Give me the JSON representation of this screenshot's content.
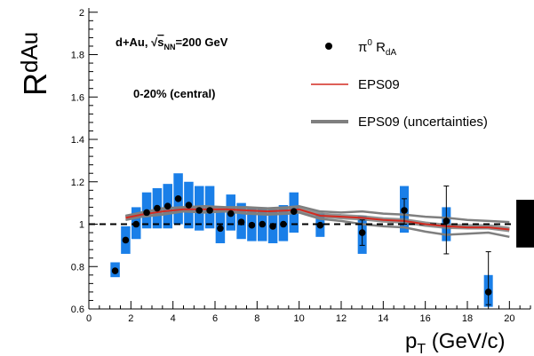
{
  "chart_data": {
    "type": "scatter",
    "xlim": [
      0,
      21
    ],
    "ylim": [
      0.6,
      2.02
    ],
    "x_ticks": [
      0,
      2,
      4,
      6,
      8,
      10,
      12,
      14,
      16,
      18,
      20
    ],
    "y_ticks": [
      0.6,
      0.8,
      1.0,
      1.2,
      1.4,
      1.6,
      1.8,
      2.0
    ],
    "x_tick_labels": [
      "0",
      "2",
      "4",
      "6",
      "8",
      "10",
      "12",
      "14",
      "16",
      "18",
      "20"
    ],
    "y_tick_labels": [
      "0.6",
      "0.8",
      "1",
      "1.2",
      "1.4",
      "1.6",
      "1.8",
      "2"
    ],
    "ylabel": {
      "main": "R",
      "sub": "dAu"
    },
    "xlabel": {
      "main": "p",
      "sub": "T",
      "rest": " (GeV/c)"
    },
    "reference_line": 1.0,
    "annotations": {
      "system": {
        "prefix": "d+Au, ",
        "sqrt": "s",
        "sqrt_sub": "NN",
        "suffix": "=200 GeV"
      },
      "centrality": "0-20% (central)"
    },
    "legend": {
      "placement": "top-right",
      "data": {
        "main": "π",
        "sup": "0",
        "mid": " R",
        "sub": "dA"
      },
      "eps09": "EPS09",
      "eps09_unc": "EPS09 (uncertainties)"
    },
    "series": [
      {
        "name": "π0 RdA",
        "marker": "circle",
        "color": "#000000",
        "box_color": "#1a7fe8",
        "points": [
          {
            "x": 1.25,
            "y": 0.78,
            "sys_lo": 0.75,
            "sys_hi": 0.82
          },
          {
            "x": 1.75,
            "y": 0.925,
            "sys_lo": 0.86,
            "sys_hi": 0.99
          },
          {
            "x": 2.25,
            "y": 1.0,
            "sys_lo": 0.93,
            "sys_hi": 1.08
          },
          {
            "x": 2.75,
            "y": 1.055,
            "sys_lo": 0.98,
            "sys_hi": 1.15
          },
          {
            "x": 3.25,
            "y": 1.075,
            "sys_lo": 0.98,
            "sys_hi": 1.17
          },
          {
            "x": 3.75,
            "y": 1.085,
            "sys_lo": 0.98,
            "sys_hi": 1.19
          },
          {
            "x": 4.25,
            "y": 1.12,
            "sys_lo": 1.0,
            "sys_hi": 1.24
          },
          {
            "x": 4.75,
            "y": 1.09,
            "sys_lo": 0.98,
            "sys_hi": 1.2
          },
          {
            "x": 5.25,
            "y": 1.065,
            "sys_lo": 0.97,
            "sys_hi": 1.18
          },
          {
            "x": 5.75,
            "y": 1.065,
            "sys_lo": 0.98,
            "sys_hi": 1.18
          },
          {
            "x": 6.25,
            "y": 0.98,
            "sys_lo": 0.91,
            "sys_hi": 1.07
          },
          {
            "x": 6.75,
            "y": 1.05,
            "sys_lo": 0.97,
            "sys_hi": 1.14
          },
          {
            "x": 7.25,
            "y": 1.01,
            "sys_lo": 0.93,
            "sys_hi": 1.1
          },
          {
            "x": 7.75,
            "y": 0.995,
            "sys_lo": 0.92,
            "sys_hi": 1.08
          },
          {
            "x": 8.25,
            "y": 1.0,
            "sys_lo": 0.92,
            "sys_hi": 1.08
          },
          {
            "x": 8.75,
            "y": 0.99,
            "sys_lo": 0.91,
            "sys_hi": 1.07
          },
          {
            "x": 9.25,
            "y": 1.0,
            "sys_lo": 0.92,
            "sys_hi": 1.09
          },
          {
            "x": 9.75,
            "y": 1.06,
            "sys_lo": 0.96,
            "sys_hi": 1.15
          },
          {
            "x": 11.0,
            "y": 0.995,
            "sys_lo": 0.94,
            "sys_hi": 1.05
          },
          {
            "x": 13.0,
            "y": 0.96,
            "sys_lo": 0.86,
            "sys_hi": 1.04
          },
          {
            "x": 15.0,
            "y": 1.065,
            "sys_lo": 0.96,
            "sys_hi": 1.18
          },
          {
            "x": 17.0,
            "y": 1.015,
            "sys_lo": 0.92,
            "sys_hi": 1.08
          },
          {
            "x": 19.0,
            "y": 0.68,
            "sys_lo": 0.61,
            "sys_hi": 0.76
          }
        ],
        "stat_errors": [
          {
            "x": 13.0,
            "lo": 0.9,
            "hi": 1.02
          },
          {
            "x": 15.0,
            "lo": 1.0,
            "hi": 1.12
          },
          {
            "x": 17.0,
            "lo": 0.86,
            "hi": 1.18
          },
          {
            "x": 19.0,
            "lo": 0.62,
            "hi": 0.87
          }
        ]
      },
      {
        "name": "EPS09",
        "type": "line",
        "color": "#d42a20",
        "x": [
          1.75,
          2.5,
          3.5,
          4.5,
          5.5,
          6.5,
          7.5,
          8.5,
          9.5,
          10.0,
          11.0,
          12.0,
          13.0,
          14.0,
          15.0,
          16.0,
          17.0,
          18.0,
          19.0,
          20.0
        ],
        "y": [
          1.03,
          1.045,
          1.06,
          1.07,
          1.07,
          1.07,
          1.065,
          1.06,
          1.065,
          1.07,
          1.04,
          1.035,
          1.03,
          1.02,
          1.015,
          1.0,
          0.99,
          0.985,
          0.985,
          0.975
        ]
      },
      {
        "name": "EPS09 (uncertainties)",
        "type": "band",
        "color": "#7f7f7f",
        "x": [
          1.75,
          2.5,
          3.5,
          4.5,
          5.5,
          6.5,
          7.5,
          8.5,
          9.5,
          10.0,
          11.0,
          12.0,
          13.0,
          14.0,
          15.0,
          16.0,
          17.0,
          18.0,
          19.0,
          20.0
        ],
        "y_upper": [
          1.04,
          1.055,
          1.075,
          1.08,
          1.085,
          1.08,
          1.08,
          1.075,
          1.08,
          1.085,
          1.06,
          1.055,
          1.06,
          1.05,
          1.045,
          1.035,
          1.03,
          1.02,
          1.015,
          1.01
        ],
        "y_lower": [
          1.02,
          1.035,
          1.045,
          1.06,
          1.055,
          1.06,
          1.05,
          1.045,
          1.05,
          1.055,
          1.025,
          1.015,
          1.0,
          0.99,
          0.985,
          0.965,
          0.95,
          0.955,
          0.96,
          0.94
        ]
      }
    ],
    "global_uncertainty": {
      "x": 20.75,
      "lo": 0.89,
      "hi": 1.115,
      "color": "#000000"
    }
  }
}
